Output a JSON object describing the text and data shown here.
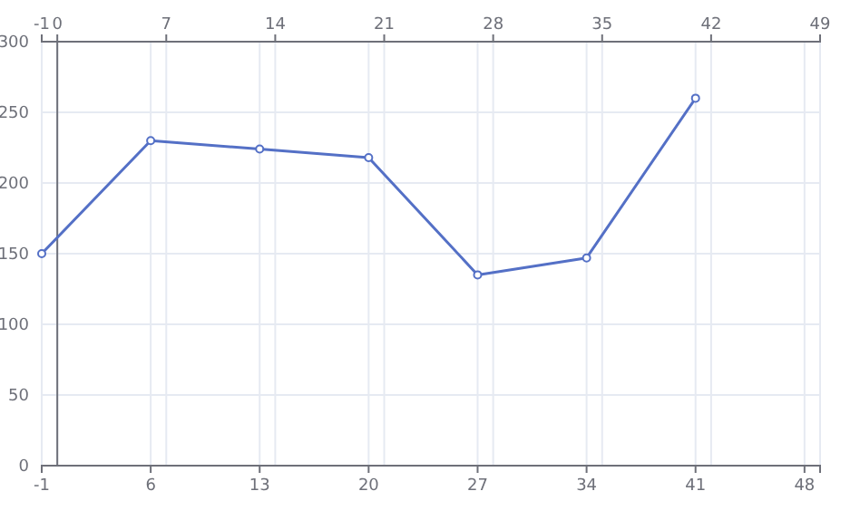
{
  "chart_data": {
    "type": "line",
    "x": [
      -1,
      6,
      13,
      20,
      27,
      34,
      41
    ],
    "series": [
      {
        "color": "#5470c6",
        "values": [
          150,
          230,
          224,
          218,
          135,
          147,
          260
        ]
      }
    ],
    "xlim": [
      -1,
      49
    ],
    "xticks": [
      -1,
      6,
      13,
      20,
      27,
      34,
      41,
      48
    ],
    "x2lim": [
      -1,
      49
    ],
    "x2ticks": [
      -1,
      0,
      7,
      14,
      21,
      28,
      35,
      42,
      49
    ],
    "ylim": [
      0,
      300
    ],
    "yticks": [
      0,
      50,
      100,
      150,
      200,
      250,
      300
    ],
    "grid": true,
    "marker": "circle",
    "line_style": "solid"
  }
}
